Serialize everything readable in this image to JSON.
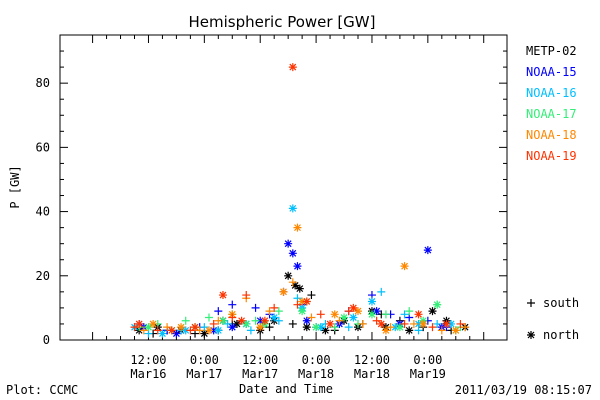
{
  "chart_data": {
    "type": "scatter",
    "title": "Hemispheric Power [GW]",
    "xlabel": "Date and Time",
    "ylabel": "P [GW]",
    "ylim": [
      0,
      95
    ],
    "xlim_hours": [
      -7,
      89
    ],
    "y_ticks": [
      0,
      20,
      40,
      60,
      80
    ],
    "x_ticks": [
      {
        "h": 12,
        "l1": "12:00",
        "l2": "Mar16"
      },
      {
        "h": 24,
        "l1": "0:00",
        "l2": "Mar17"
      },
      {
        "h": 36,
        "l1": "12:00",
        "l2": "Mar17"
      },
      {
        "h": 48,
        "l1": "0:00",
        "l2": "Mar18"
      },
      {
        "h": 60,
        "l1": "12:00",
        "l2": "Mar18"
      },
      {
        "h": 72,
        "l1": "0:00",
        "l2": "Mar19"
      }
    ],
    "marker_legend": [
      {
        "symbol": "+",
        "label": "south"
      },
      {
        "symbol": "*",
        "label": "north"
      }
    ],
    "series": [
      {
        "name": "METP-02",
        "color": "#000000",
        "south": [
          [
            13,
            2
          ],
          [
            16,
            3
          ],
          [
            22,
            2
          ],
          [
            27,
            3
          ],
          [
            30,
            5
          ],
          [
            38,
            4
          ],
          [
            43,
            5
          ],
          [
            47,
            14
          ],
          [
            52,
            3
          ],
          [
            58,
            5
          ],
          [
            62,
            8
          ],
          [
            66,
            6
          ],
          [
            71,
            4
          ],
          [
            77,
            3
          ]
        ],
        "north": [
          [
            10,
            3
          ],
          [
            14,
            4
          ],
          [
            19,
            3
          ],
          [
            24,
            2
          ],
          [
            28,
            6
          ],
          [
            31,
            5
          ],
          [
            36,
            3
          ],
          [
            39,
            6
          ],
          [
            42,
            20
          ],
          [
            43.5,
            17
          ],
          [
            44.5,
            16
          ],
          [
            46,
            4
          ],
          [
            50,
            3
          ],
          [
            54,
            6
          ],
          [
            57,
            4
          ],
          [
            60,
            9
          ],
          [
            63,
            4
          ],
          [
            68,
            3
          ],
          [
            73,
            9
          ],
          [
            76,
            6
          ],
          [
            80,
            4
          ]
        ]
      },
      {
        "name": "NOAA-15",
        "color": "#0000ff",
        "south": [
          [
            10,
            5
          ],
          [
            16,
            3
          ],
          [
            23,
            4
          ],
          [
            27,
            9
          ],
          [
            30,
            11
          ],
          [
            35,
            10
          ],
          [
            38,
            8
          ],
          [
            41,
            15
          ],
          [
            45,
            11
          ],
          [
            48,
            4
          ],
          [
            55,
            9
          ],
          [
            60,
            14
          ],
          [
            64,
            8
          ],
          [
            68,
            7
          ],
          [
            72,
            6
          ],
          [
            76,
            4
          ]
        ],
        "north": [
          [
            11,
            4
          ],
          [
            18,
            2
          ],
          [
            26,
            3
          ],
          [
            30,
            4
          ],
          [
            33,
            5
          ],
          [
            36,
            6
          ],
          [
            42,
            30
          ],
          [
            43,
            27
          ],
          [
            44,
            23
          ],
          [
            46,
            6
          ],
          [
            53,
            5
          ],
          [
            61,
            9
          ],
          [
            66,
            5
          ],
          [
            72,
            28
          ],
          [
            75,
            4
          ]
        ]
      },
      {
        "name": "NOAA-16",
        "color": "#00bfff",
        "south": [
          [
            12,
            2
          ],
          [
            19,
            3
          ],
          [
            24,
            4
          ],
          [
            29,
            5
          ],
          [
            34,
            3
          ],
          [
            40,
            6
          ],
          [
            44,
            13
          ],
          [
            50,
            5
          ],
          [
            55,
            4
          ],
          [
            62,
            15
          ],
          [
            67,
            8
          ],
          [
            70,
            3
          ],
          [
            74,
            5
          ]
        ],
        "north": [
          [
            9,
            4
          ],
          [
            15,
            2
          ],
          [
            20,
            3
          ],
          [
            27,
            3
          ],
          [
            33,
            5
          ],
          [
            39,
            7
          ],
          [
            43,
            41
          ],
          [
            45,
            10
          ],
          [
            49,
            4
          ],
          [
            56,
            7
          ],
          [
            60,
            12
          ],
          [
            65,
            4
          ],
          [
            70,
            5
          ],
          [
            77,
            5
          ]
        ]
      },
      {
        "name": "NOAA-17",
        "color": "#33ee77",
        "south": [
          [
            10,
            4
          ],
          [
            14,
            5
          ],
          [
            20,
            6
          ],
          [
            25,
            7
          ],
          [
            30,
            8
          ],
          [
            35,
            6
          ],
          [
            40,
            9
          ],
          [
            46,
            12
          ],
          [
            52,
            4
          ],
          [
            57,
            5
          ],
          [
            63,
            8
          ],
          [
            68,
            9
          ],
          [
            74,
            11
          ],
          [
            79,
            4
          ]
        ],
        "north": [
          [
            12,
            4
          ],
          [
            17,
            3
          ],
          [
            22,
            4
          ],
          [
            28,
            6
          ],
          [
            33,
            5
          ],
          [
            37,
            5
          ],
          [
            45,
            9
          ],
          [
            48,
            4
          ],
          [
            54,
            7
          ],
          [
            60,
            8
          ],
          [
            66,
            4
          ],
          [
            71,
            6
          ],
          [
            74,
            11
          ],
          [
            78,
            3
          ]
        ]
      },
      {
        "name": "NOAA-18",
        "color": "#ff8800",
        "south": [
          [
            11,
            3
          ],
          [
            16,
            4
          ],
          [
            23,
            3
          ],
          [
            27,
            6
          ],
          [
            33,
            13
          ],
          [
            38,
            9
          ],
          [
            43,
            18
          ],
          [
            47,
            7
          ],
          [
            53,
            6
          ],
          [
            58,
            5
          ],
          [
            64,
            4
          ],
          [
            69,
            5
          ],
          [
            75,
            3
          ],
          [
            80,
            4
          ]
        ],
        "north": [
          [
            13,
            5
          ],
          [
            19,
            4
          ],
          [
            25,
            3
          ],
          [
            30,
            8
          ],
          [
            36,
            4
          ],
          [
            41,
            15
          ],
          [
            44,
            35
          ],
          [
            45,
            12
          ],
          [
            52,
            8
          ],
          [
            57,
            9
          ],
          [
            63,
            3
          ],
          [
            67,
            23
          ],
          [
            71,
            5
          ],
          [
            78,
            3
          ]
        ]
      },
      {
        "name": "NOAA-19",
        "color": "#ff3300",
        "south": [
          [
            9,
            4
          ],
          [
            14,
            3
          ],
          [
            21,
            3
          ],
          [
            26,
            5
          ],
          [
            30,
            7
          ],
          [
            33,
            14
          ],
          [
            39,
            10
          ],
          [
            44,
            11
          ],
          [
            49,
            8
          ],
          [
            55,
            9
          ],
          [
            61,
            6
          ],
          [
            67,
            5
          ],
          [
            73,
            4
          ],
          [
            79,
            5
          ]
        ],
        "north": [
          [
            10,
            5
          ],
          [
            17,
            3
          ],
          [
            22,
            4
          ],
          [
            28,
            14
          ],
          [
            32,
            6
          ],
          [
            37,
            6
          ],
          [
            43,
            85
          ],
          [
            46,
            12
          ],
          [
            51,
            5
          ],
          [
            56,
            10
          ],
          [
            62,
            5
          ],
          [
            70,
            8
          ],
          [
            76,
            5
          ]
        ]
      }
    ]
  },
  "footer": {
    "left": "Plot: CCMC",
    "right": "2011/03/19 08:15:07"
  }
}
